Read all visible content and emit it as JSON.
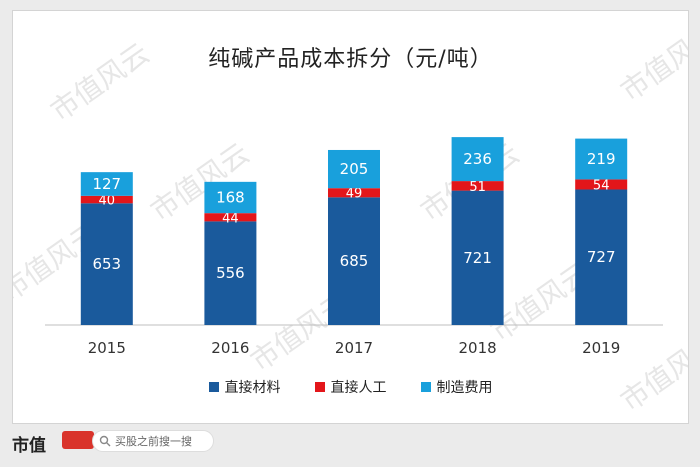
{
  "chart_data": {
    "type": "bar",
    "stacked": true,
    "title": "纯碱产品成本拆分（元/吨）",
    "categories": [
      "2015",
      "2016",
      "2017",
      "2018",
      "2019"
    ],
    "series": [
      {
        "name": "直接材料",
        "color": "#1a5a9c",
        "values": [
          653,
          556,
          685,
          721,
          727
        ]
      },
      {
        "name": "直接人工",
        "color": "#e3161a",
        "values": [
          40,
          44,
          49,
          51,
          54
        ]
      },
      {
        "name": "制造费用",
        "color": "#19a0dc",
        "values": [
          127,
          168,
          205,
          236,
          219
        ]
      }
    ],
    "grid": false,
    "legend_position": "bottom"
  },
  "watermark": {
    "text": "市值风云"
  },
  "footer": {
    "brand": "市值",
    "brand_logo_icon": "fengyun-logo-icon",
    "search_icon": "search-icon",
    "search_placeholder": "买股之前搜一搜"
  }
}
